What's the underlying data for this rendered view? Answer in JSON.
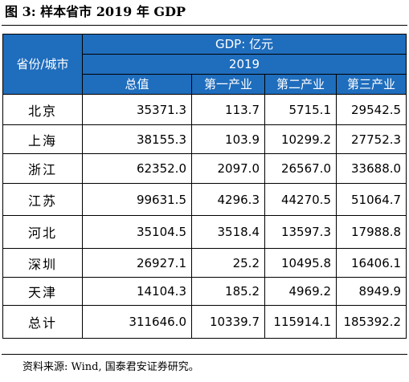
{
  "title": "图 3:  样本省市 2019 年 GDP",
  "table": {
    "header": {
      "province_label": "省份/城市",
      "unit_label": "GDP: 亿元",
      "year_label": "2019",
      "columns": [
        "总值",
        "第一产业",
        "第二产业",
        "第三产业"
      ]
    },
    "rows": [
      {
        "name": "北京",
        "values": [
          "35371.3",
          "113.7",
          "5715.1",
          "29542.5"
        ]
      },
      {
        "name": "上海",
        "values": [
          "38155.3",
          "103.9",
          "10299.2",
          "27752.3"
        ]
      },
      {
        "name": "浙江",
        "values": [
          "62352.0",
          "2097.0",
          "26567.0",
          "33688.0"
        ]
      },
      {
        "name": "江苏",
        "values": [
          "99631.5",
          "4296.3",
          "44270.5",
          "51064.7"
        ]
      },
      {
        "name": "河北",
        "values": [
          "35104.5",
          "3518.4",
          "13597.3",
          "17988.8"
        ]
      },
      {
        "name": "深圳",
        "values": [
          "26927.1",
          "25.2",
          "10495.8",
          "16406.1"
        ]
      },
      {
        "name": "天津",
        "values": [
          "14104.3",
          "185.2",
          "4969.2",
          "8949.9"
        ]
      },
      {
        "name": "总计",
        "values": [
          "311646.0",
          "10339.7",
          "115914.1",
          "185392.2"
        ]
      }
    ]
  },
  "source": "资料来源: Wind, 国泰君安证券研究。",
  "colors": {
    "header_background": "#1f6dbd",
    "header_text": "#ffffff",
    "border": "#000000"
  }
}
